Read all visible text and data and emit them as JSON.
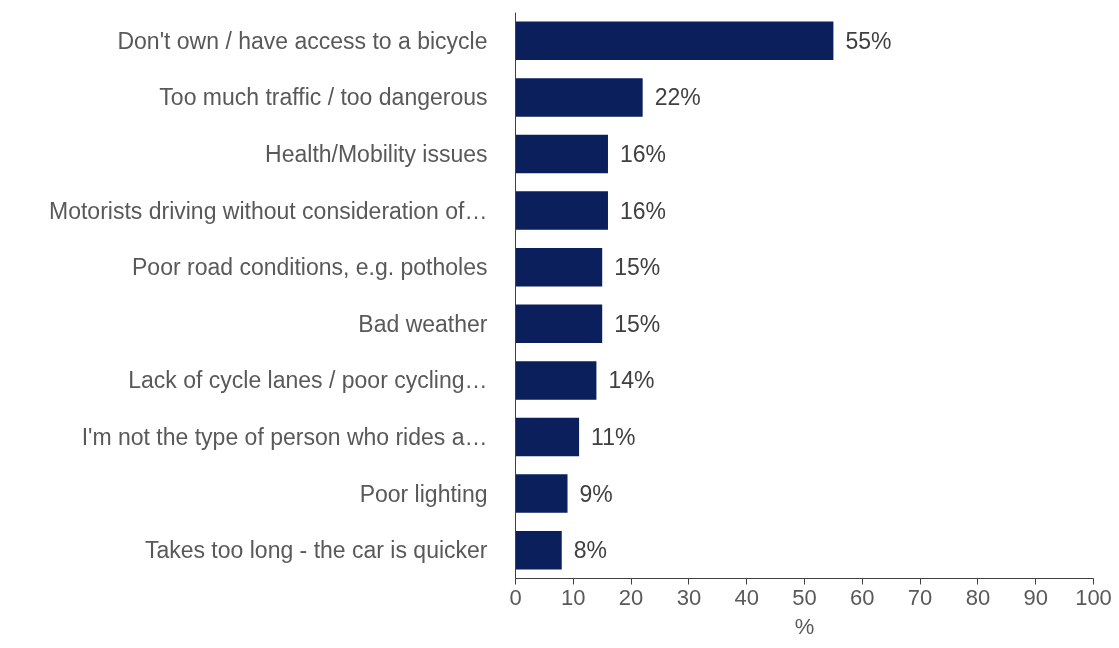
{
  "chart_data": {
    "type": "bar",
    "orientation": "horizontal",
    "xlabel": "%",
    "categories": [
      "Don't own / have access to a bicycle",
      "Too much traffic / too dangerous",
      "Health/Mobility issues",
      "Motorists driving without consideration of…",
      "Poor road conditions, e.g. potholes",
      "Bad weather",
      "Lack of cycle lanes / poor cycling…",
      "I'm not the type of person who rides a…",
      "Poor lighting",
      "Takes too long - the car is quicker"
    ],
    "values": [
      55,
      22,
      16,
      16,
      15,
      15,
      14,
      11,
      9,
      8
    ],
    "value_labels": [
      "55%",
      "22%",
      "16%",
      "16%",
      "15%",
      "15%",
      "14%",
      "11%",
      "9%",
      "8%"
    ],
    "color": "#0a1f5c",
    "xlim": [
      0,
      100
    ],
    "xticks": [
      0,
      10,
      20,
      30,
      40,
      50,
      60,
      70,
      80,
      90,
      100
    ],
    "grid": false
  }
}
